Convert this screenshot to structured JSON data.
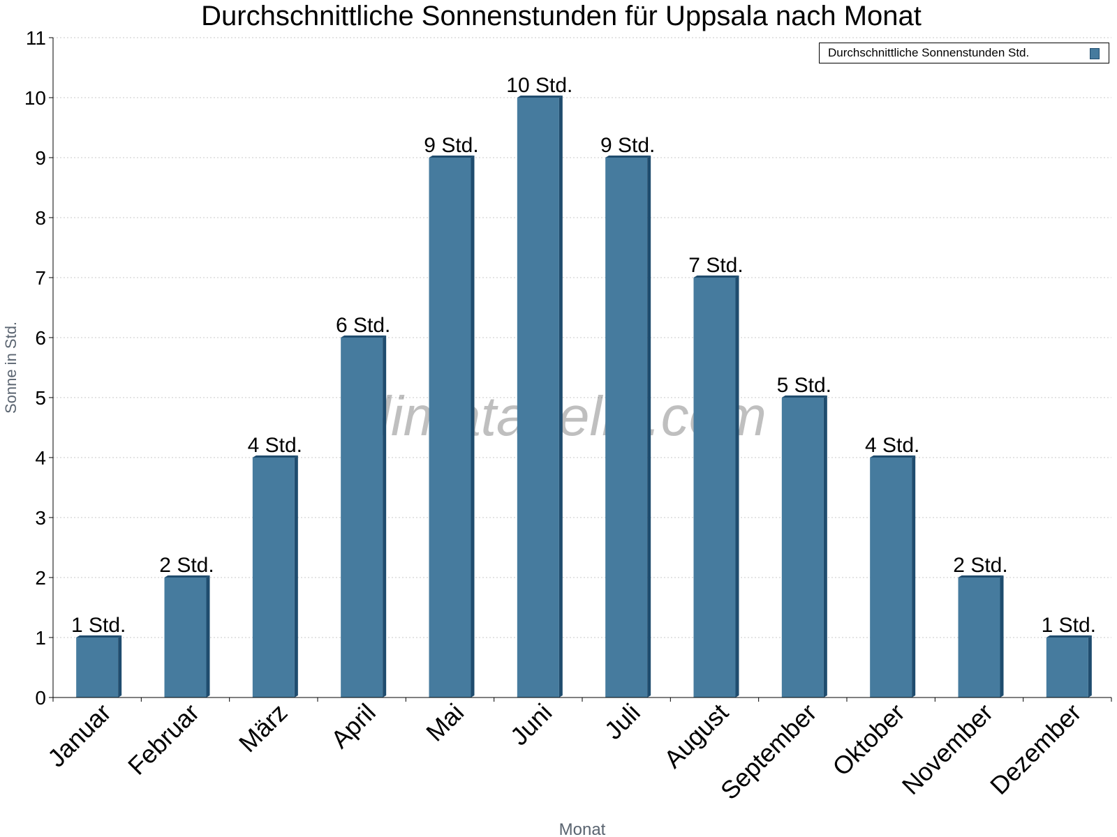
{
  "chart_data": {
    "type": "bar",
    "title": "Durchschnittliche Sonnenstunden für Uppsala nach Monat",
    "xlabel": "Monat",
    "ylabel": "Sonne in Std.",
    "categories": [
      "Januar",
      "Februar",
      "März",
      "April",
      "Mai",
      "Juni",
      "Juli",
      "August",
      "September",
      "Oktober",
      "November",
      "Dezember"
    ],
    "series": [
      {
        "name": "Durchschnittliche Sonnenstunden Std.",
        "values": [
          1,
          2,
          4,
          6,
          9,
          10,
          9,
          7,
          5,
          4,
          2,
          1
        ],
        "data_labels": [
          "1 Std.",
          "2 Std.",
          "4 Std.",
          "6 Std.",
          "9 Std.",
          "10 Std.",
          "9 Std.",
          "7 Std.",
          "5 Std.",
          "4 Std.",
          "2 Std.",
          "1 Std."
        ]
      }
    ],
    "ylim": [
      0,
      11
    ],
    "yticks": [
      "0",
      "1",
      "2",
      "3",
      "4",
      "5",
      "6",
      "7",
      "8",
      "9",
      "10",
      "11"
    ],
    "grid": true,
    "legend_position": "top-right",
    "colors": {
      "bar": "#467b9e",
      "bar_side": "#1f4c6e",
      "grid": "#c8c8c8"
    },
    "watermark": "klimatabelle.com"
  }
}
